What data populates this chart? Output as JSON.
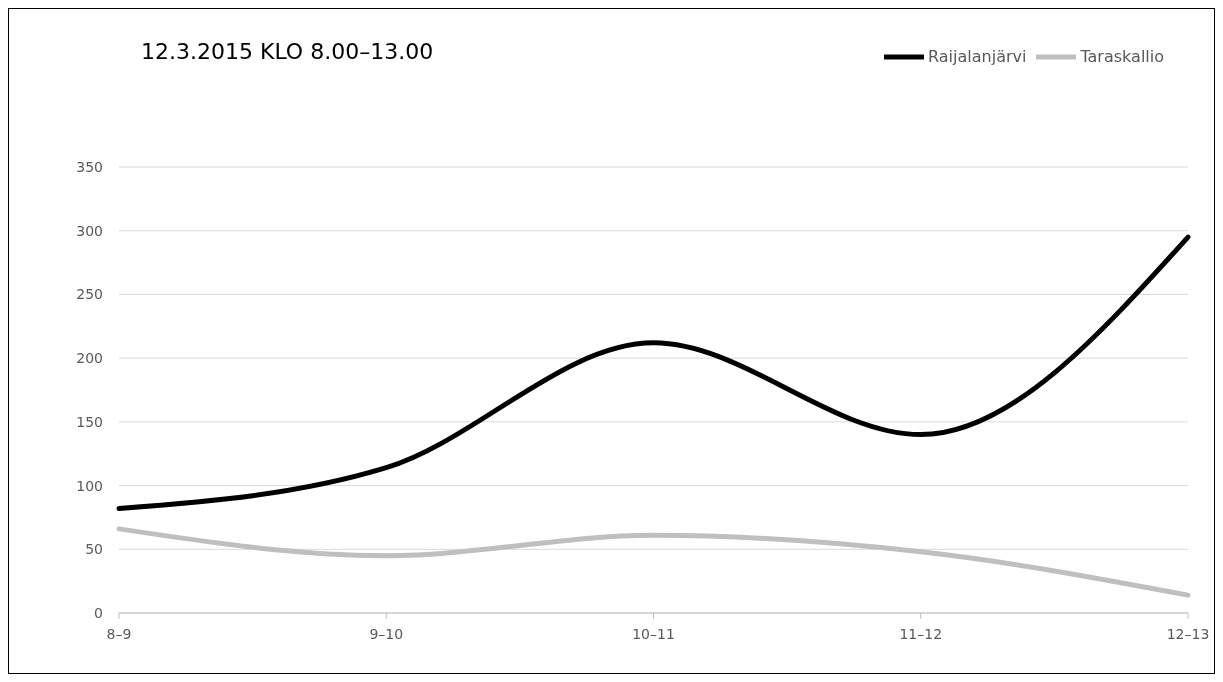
{
  "chart_data": {
    "type": "line",
    "title": "12.3.2015 KLO 8.00–13.00",
    "categories": [
      "8–9",
      "9–10",
      "10–11",
      "11–12",
      "12–13"
    ],
    "series": [
      {
        "name": "Taraskallio",
        "color": "#bfbfbf",
        "values": [
          66,
          45,
          61,
          48,
          14
        ]
      },
      {
        "name": "Raijalanjärvi",
        "color": "#000000",
        "values": [
          82,
          114,
          212,
          140,
          295
        ]
      }
    ],
    "ylim": [
      0,
      350
    ],
    "yticks": [
      0,
      50,
      100,
      150,
      200,
      250,
      300,
      350
    ],
    "grid": "y",
    "legend": "top right",
    "marker": "none",
    "line_style": "solid"
  }
}
